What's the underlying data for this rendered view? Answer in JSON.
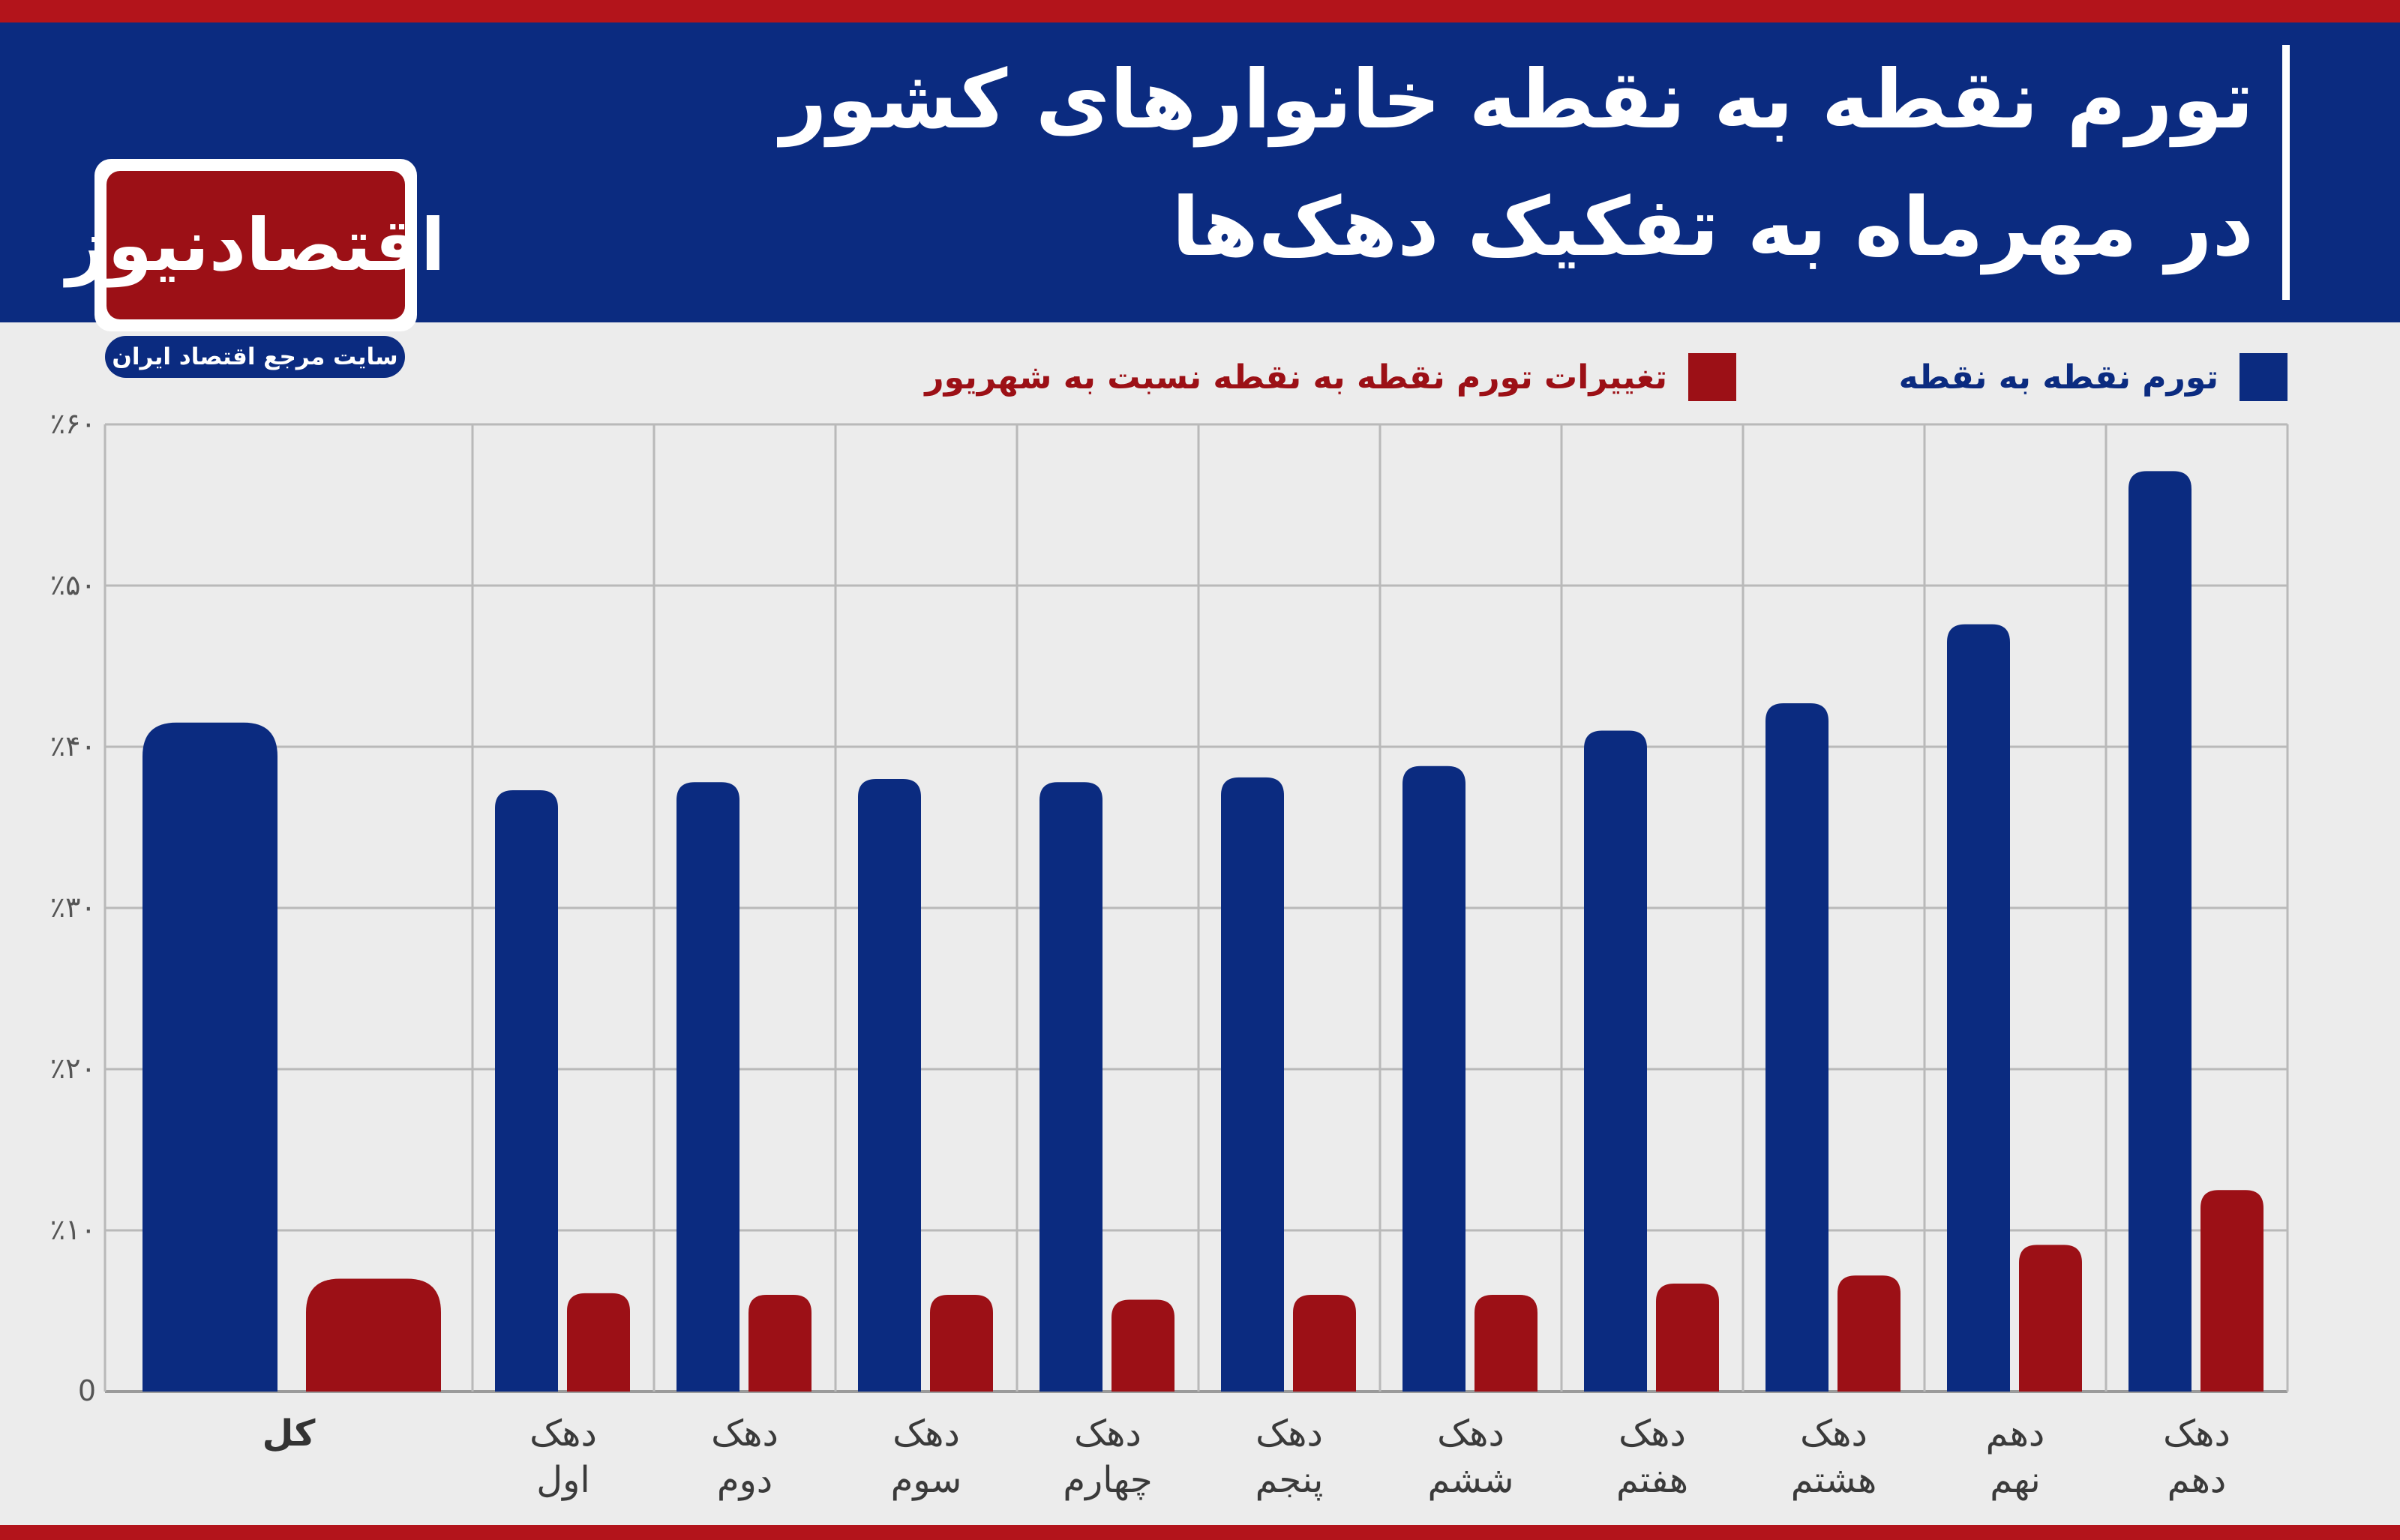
{
  "header": {
    "title_line1": "تورم نقطه به نقطه خانوارهای کشور",
    "title_line2": "در مهرماه به تفکیک دهک‌ها"
  },
  "logo": {
    "name": "اقتصادنیوز",
    "tagline": "سایت مرجع اقتصاد ایران"
  },
  "colors": {
    "primary_blue": "#0b2b80",
    "accent_red": "#9c1016",
    "plot_background": "#ececec"
  },
  "chart_data": {
    "type": "bar",
    "categories": [
      [
        "کل"
      ],
      [
        "دهک",
        "اول"
      ],
      [
        "دهک",
        "دوم"
      ],
      [
        "دهک",
        "سوم"
      ],
      [
        "دهک",
        "چهارم"
      ],
      [
        "دهک",
        "پنجم"
      ],
      [
        "دهک",
        "ششم"
      ],
      [
        "دهک",
        "هفتم"
      ],
      [
        "دهک",
        "هشتم"
      ],
      [
        "دهم",
        "نهم"
      ],
      [
        "دهک",
        "دهم"
      ]
    ],
    "series": [
      {
        "name": "تورم نقطه به نقطه",
        "color": "#0b2b80",
        "values": [
          41.5,
          37.3,
          37.8,
          38.0,
          37.8,
          38.1,
          38.8,
          41.0,
          42.7,
          47.6,
          57.1
        ]
      },
      {
        "name": "تغییرات تورم نقطه به نقطه نسبت به شهریور",
        "color": "#9c1016",
        "values": [
          7.0,
          6.1,
          6.0,
          6.0,
          5.7,
          6.0,
          6.0,
          6.7,
          7.2,
          9.1,
          12.5
        ]
      }
    ],
    "y_ticks": [
      "0",
      "٪۱۰",
      "٪۲۰",
      "٪۳۰",
      "٪۴۰",
      "٪۵۰",
      "٪۶۰"
    ],
    "ylim": [
      0,
      60
    ],
    "grid": true,
    "legend": "top-right"
  }
}
